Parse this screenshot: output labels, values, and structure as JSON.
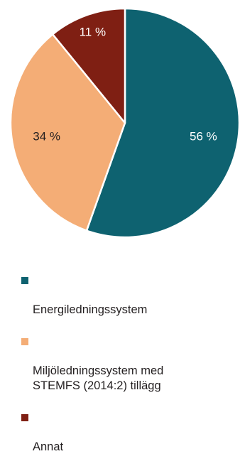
{
  "chart_data": {
    "type": "pie",
    "categories": [
      "Energiledningssystem",
      "Miljöledningssystem med\nSTEMFS (2014:2) tillägg",
      "Annat"
    ],
    "values": [
      56,
      34,
      11
    ],
    "labels": [
      "56 %",
      "34 %",
      "11 %"
    ],
    "colors": [
      "#0e6270",
      "#f4ad76",
      "#7f1f13"
    ],
    "label_colors": [
      "#ffffff",
      "#231f20",
      "#ffffff"
    ],
    "start_angle_deg": 0,
    "direction": "clockwise",
    "legend_position": "bottom"
  }
}
